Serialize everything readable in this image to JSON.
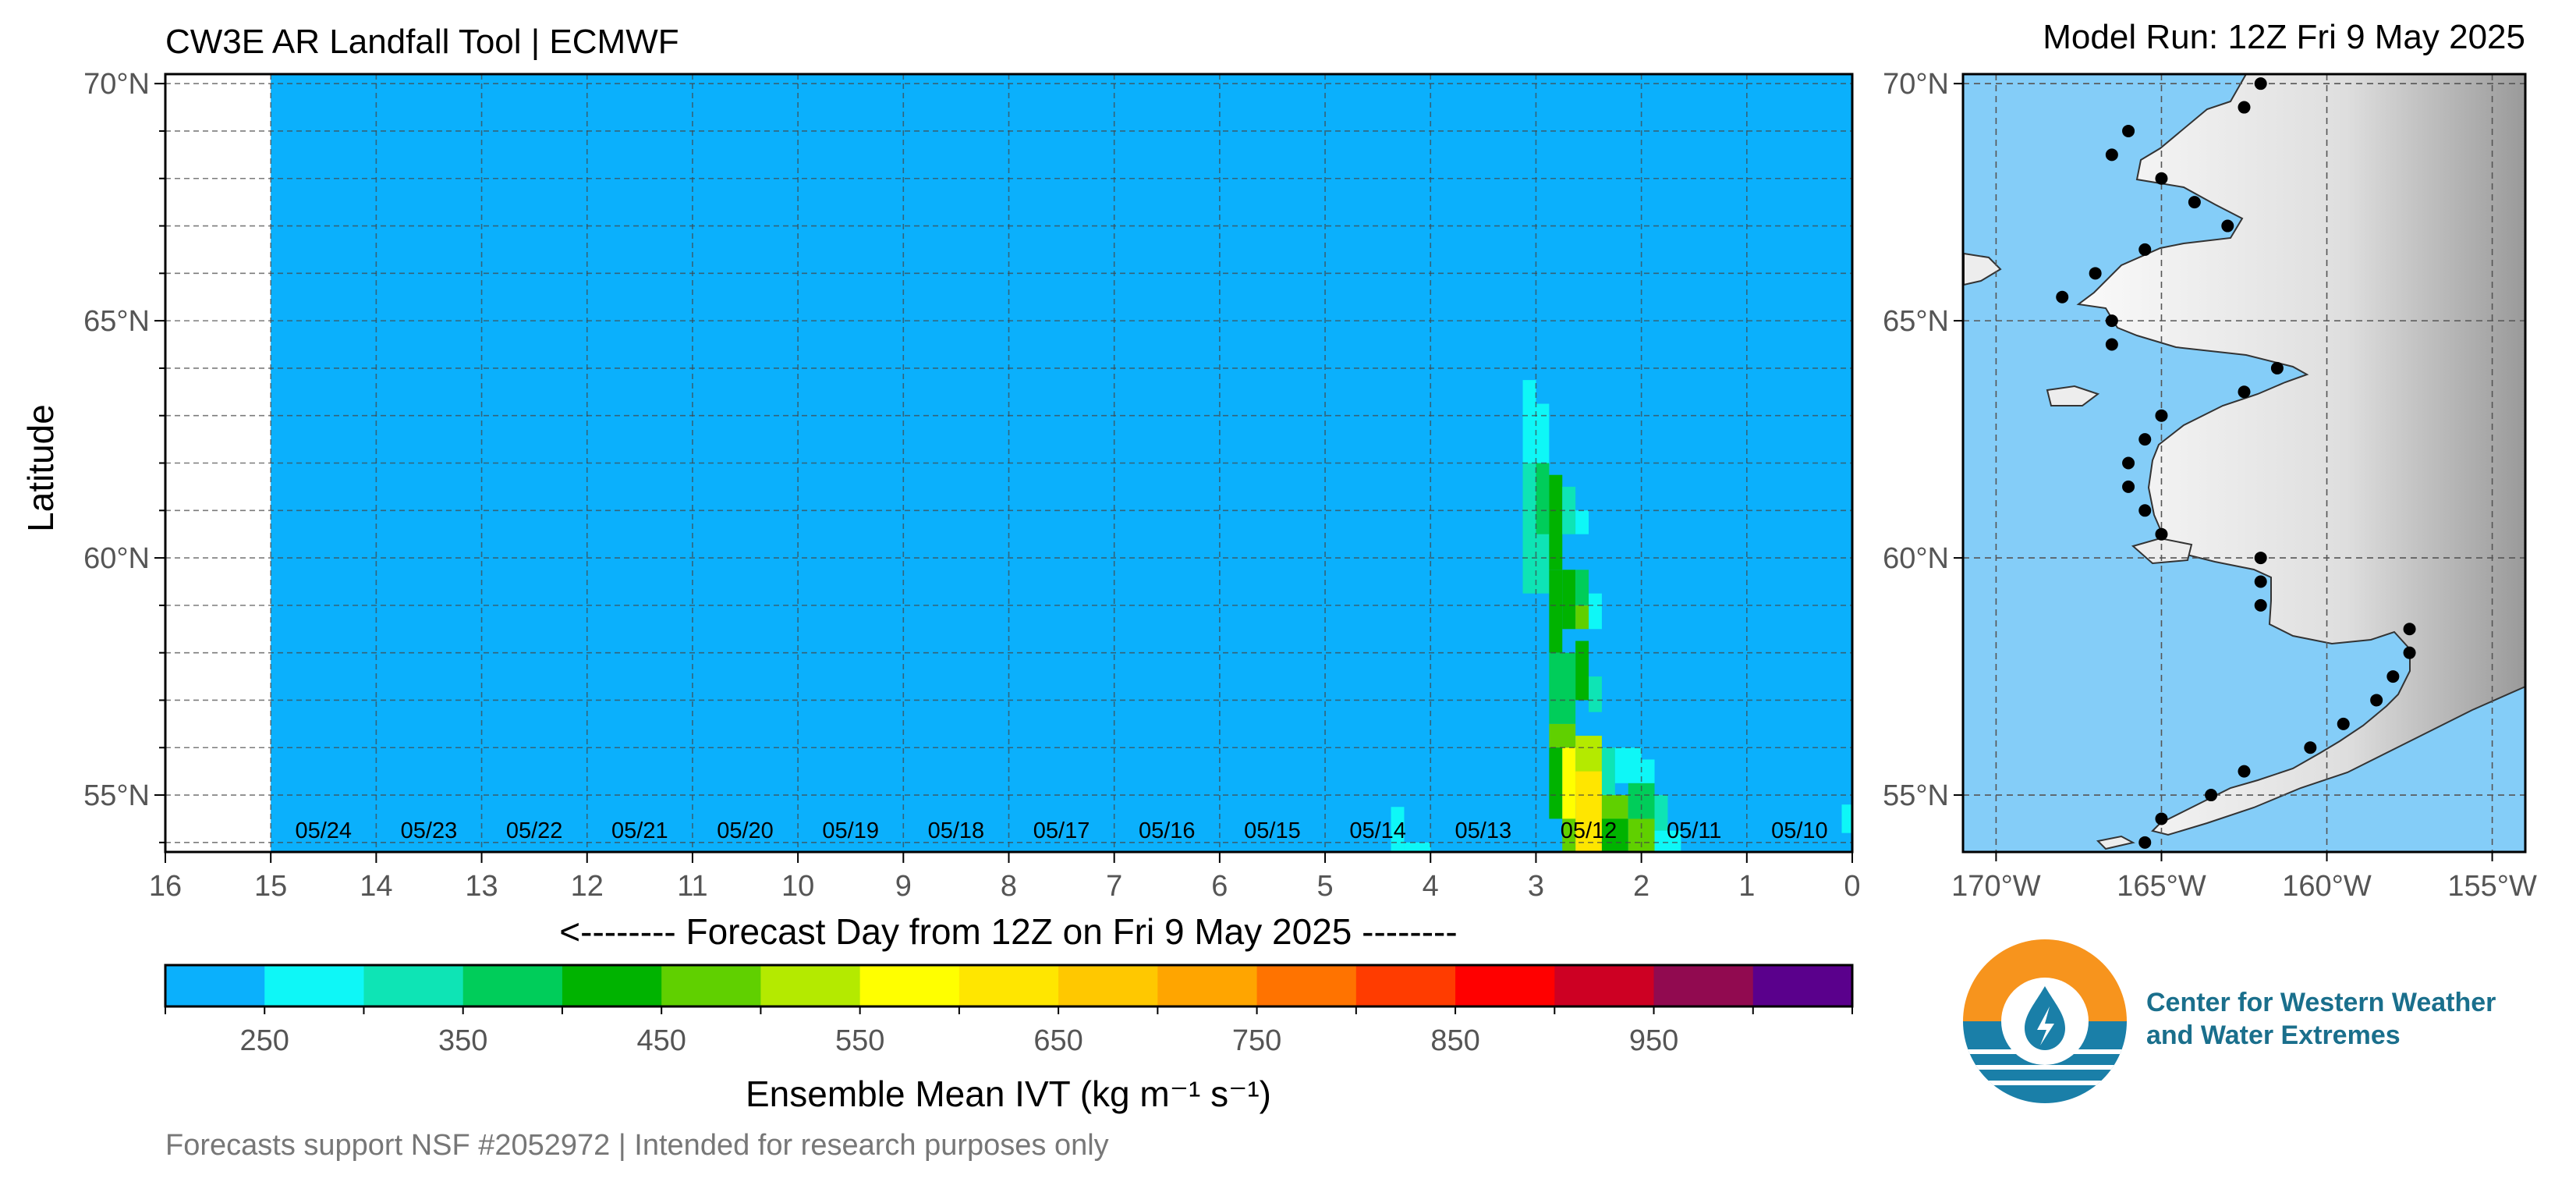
{
  "chart_data": [
    {
      "type": "heatmap",
      "title": "CW3E AR Landfall Tool | ECMWF",
      "xlabel": "<-------- Forecast Day from 12Z on Fri 9 May 2025 --------",
      "ylabel": "Latitude",
      "xlim": [
        16,
        0
      ],
      "ylim": [
        53.8,
        70.2
      ],
      "x_ticks": [
        "16",
        "15",
        "14",
        "13",
        "12",
        "11",
        "10",
        "9",
        "8",
        "7",
        "6",
        "5",
        "4",
        "3",
        "2",
        "1",
        "0"
      ],
      "y_ticks": [
        {
          "value": 70,
          "label": "70°N"
        },
        {
          "value": 65,
          "label": "65°N"
        },
        {
          "value": 60,
          "label": "60°N"
        },
        {
          "value": 55,
          "label": "55°N"
        }
      ],
      "date_labels": [
        {
          "day": 14.5,
          "label": "05/24"
        },
        {
          "day": 13.5,
          "label": "05/23"
        },
        {
          "day": 12.5,
          "label": "05/22"
        },
        {
          "day": 11.5,
          "label": "05/21"
        },
        {
          "day": 10.5,
          "label": "05/20"
        },
        {
          "day": 9.5,
          "label": "05/19"
        },
        {
          "day": 8.5,
          "label": "05/18"
        },
        {
          "day": 7.5,
          "label": "05/17"
        },
        {
          "day": 6.5,
          "label": "05/16"
        },
        {
          "day": 5.5,
          "label": "05/15"
        },
        {
          "day": 4.5,
          "label": "05/14"
        },
        {
          "day": 3.5,
          "label": "05/13"
        },
        {
          "day": 2.5,
          "label": "05/12"
        },
        {
          "day": 1.5,
          "label": "05/11"
        },
        {
          "day": 0.5,
          "label": "05/10"
        }
      ],
      "data_start_day": 15,
      "grid": true,
      "background_color": "#0bb0fc",
      "cells": [
        [
          3.125,
          3.0,
          62.0,
          63.75,
          250
        ],
        [
          3.0,
          2.875,
          62.0,
          63.25,
          250
        ],
        [
          3.125,
          2.875,
          59.25,
          62.0,
          300
        ],
        [
          3.0,
          2.875,
          60.5,
          62.0,
          350
        ],
        [
          2.875,
          2.75,
          59.75,
          61.75,
          400
        ],
        [
          2.75,
          2.625,
          60.5,
          61.5,
          300
        ],
        [
          2.625,
          2.5,
          60.5,
          61.0,
          250
        ],
        [
          2.875,
          2.75,
          58.0,
          59.75,
          400
        ],
        [
          2.75,
          2.625,
          58.5,
          59.75,
          400
        ],
        [
          2.625,
          2.5,
          58.5,
          59.0,
          450
        ],
        [
          2.625,
          2.5,
          59.0,
          59.75,
          350
        ],
        [
          2.5,
          2.375,
          58.5,
          59.25,
          250
        ],
        [
          2.875,
          2.625,
          56.5,
          58.0,
          350
        ],
        [
          2.625,
          2.5,
          57.0,
          58.25,
          400
        ],
        [
          2.5,
          2.375,
          56.75,
          57.5,
          300
        ],
        [
          2.875,
          2.625,
          56.0,
          56.5,
          450
        ],
        [
          2.625,
          2.375,
          55.0,
          56.25,
          500
        ],
        [
          2.875,
          2.75,
          54.5,
          56.0,
          400
        ],
        [
          2.75,
          2.625,
          54.5,
          56.0,
          550
        ],
        [
          2.625,
          2.375,
          53.8,
          55.5,
          600
        ],
        [
          2.375,
          2.25,
          55.0,
          56.0,
          300
        ],
        [
          2.25,
          2.0,
          55.25,
          56.0,
          250
        ],
        [
          2.0,
          1.875,
          55.0,
          55.75,
          250
        ],
        [
          2.375,
          2.125,
          54.5,
          55.0,
          450
        ],
        [
          2.125,
          1.875,
          54.5,
          55.25,
          350
        ],
        [
          1.875,
          1.75,
          54.25,
          55.0,
          300
        ],
        [
          2.375,
          2.125,
          53.8,
          54.5,
          400
        ],
        [
          2.125,
          1.875,
          53.8,
          54.5,
          450
        ],
        [
          1.875,
          1.625,
          53.8,
          54.25,
          250
        ],
        [
          2.75,
          2.625,
          53.8,
          54.5,
          450
        ],
        [
          4.375,
          4.25,
          53.8,
          54.75,
          250
        ],
        [
          4.25,
          4.0,
          53.8,
          54.0,
          250
        ],
        [
          0.1,
          0.0,
          54.2,
          54.8,
          250
        ]
      ],
      "colorbar": {
        "label": "Ensemble Mean IVT (kg m⁻¹ s⁻¹)",
        "bounds": [
          200,
          250,
          300,
          350,
          400,
          450,
          500,
          550,
          600,
          650,
          700,
          750,
          800,
          850,
          900,
          950,
          1000,
          1050
        ],
        "tick_labels": [
          "250",
          "350",
          "450",
          "550",
          "650",
          "750",
          "850",
          "950"
        ],
        "colors": [
          "#0bb0fc",
          "#0ef7f7",
          "#0ee4b5",
          "#00cd5a",
          "#00b300",
          "#60d000",
          "#b4ea00",
          "#ffff00",
          "#ffe600",
          "#ffc800",
          "#ffa500",
          "#ff7300",
          "#ff3c00",
          "#ff0000",
          "#cd0023",
          "#910a50",
          "#5a008c"
        ]
      }
    },
    {
      "type": "map",
      "title": "Model Run: 12Z Fri 9 May 2025",
      "x_ticks": [
        "170°W",
        "165°W",
        "160°W",
        "155°W"
      ],
      "y_ticks": [
        "70°N",
        "65°N",
        "60°N",
        "55°N"
      ],
      "xlim": [
        -171,
        -154
      ],
      "ylim": [
        53.8,
        70.2
      ],
      "ocean_color": "#84cdf8",
      "land_color": "#ededed",
      "coast_points": [
        [
          -162.0,
          70.0
        ],
        [
          -162.5,
          69.5
        ],
        [
          -166.0,
          69.0
        ],
        [
          -166.5,
          68.5
        ],
        [
          -165.0,
          68.0
        ],
        [
          -164.0,
          67.5
        ],
        [
          -163.0,
          67.0
        ],
        [
          -165.5,
          66.5
        ],
        [
          -167.0,
          66.0
        ],
        [
          -168.0,
          65.5
        ],
        [
          -166.5,
          65.0
        ],
        [
          -166.5,
          64.5
        ],
        [
          -161.5,
          64.0
        ],
        [
          -162.5,
          63.5
        ],
        [
          -165.0,
          63.0
        ],
        [
          -165.5,
          62.5
        ],
        [
          -166.0,
          62.0
        ],
        [
          -166.0,
          61.5
        ],
        [
          -165.5,
          61.0
        ],
        [
          -165.0,
          60.5
        ],
        [
          -162.0,
          60.0
        ],
        [
          -162.0,
          59.5
        ],
        [
          -162.0,
          59.0
        ],
        [
          -157.5,
          58.5
        ],
        [
          -157.5,
          58.0
        ],
        [
          -158.0,
          57.5
        ],
        [
          -158.5,
          57.0
        ],
        [
          -159.5,
          56.5
        ],
        [
          -160.5,
          56.0
        ],
        [
          -162.5,
          55.5
        ],
        [
          -163.5,
          55.0
        ],
        [
          -165.0,
          54.5
        ],
        [
          -165.5,
          54.0
        ]
      ]
    }
  ],
  "footer": {
    "note": "Forecasts support NSF #2052972 | Intended for research purposes only"
  },
  "logo": {
    "line1": "Center for Western Weather",
    "line2": "and Water Extremes",
    "colors": {
      "orange": "#f7941d",
      "blue": "#1a7fa8"
    }
  }
}
